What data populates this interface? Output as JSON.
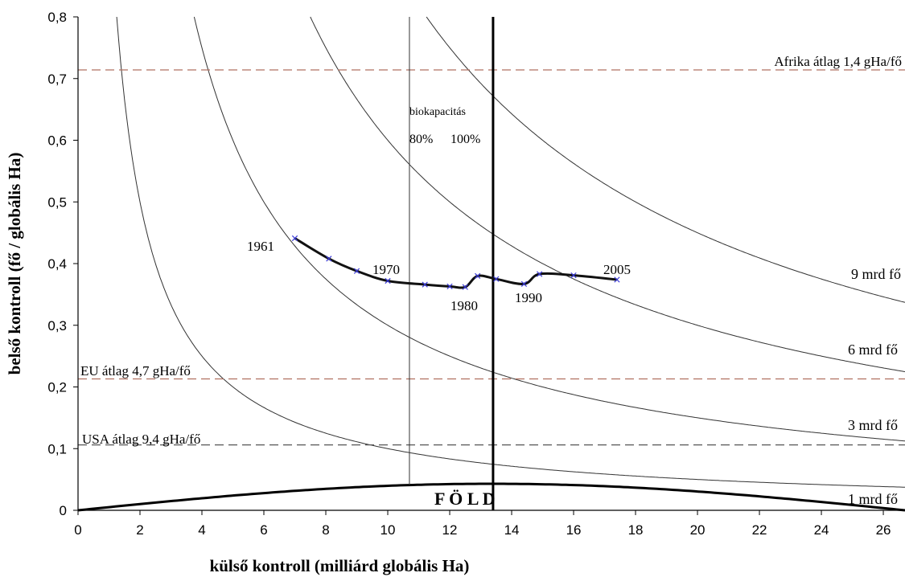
{
  "chart_data": {
    "type": "line",
    "xlabel": "külső kontroll  (milliárd globális Ha)",
    "ylabel": "belső kontroll  (fő / globális Ha)",
    "xlim": [
      0,
      26.7
    ],
    "ylim": [
      0,
      0.8
    ],
    "x_ticks": [
      "0",
      "2",
      "4",
      "6",
      "8",
      "10",
      "12",
      "14",
      "16",
      "18",
      "20",
      "22",
      "24",
      "26"
    ],
    "y_ticks": [
      "0",
      "0,1",
      "0,2",
      "0,3",
      "0,4",
      "0,5",
      "0,6",
      "0,7",
      "0,8"
    ],
    "grid": false,
    "series": [
      {
        "values": [
          {
            "x": 7.0,
            "y": 0.441
          },
          {
            "x": 8.1,
            "y": 0.408
          },
          {
            "x": 9.0,
            "y": 0.388
          },
          {
            "x": 10.0,
            "y": 0.372
          },
          {
            "x": 11.2,
            "y": 0.366
          },
          {
            "x": 12.0,
            "y": 0.363
          },
          {
            "x": 12.5,
            "y": 0.362
          },
          {
            "x": 12.9,
            "y": 0.38
          },
          {
            "x": 13.5,
            "y": 0.375
          },
          {
            "x": 14.4,
            "y": 0.367
          },
          {
            "x": 14.9,
            "y": 0.383
          },
          {
            "x": 16.0,
            "y": 0.381
          },
          {
            "x": 17.4,
            "y": 0.374
          }
        ]
      }
    ],
    "series_labels": [
      {
        "text": "1961",
        "x": 7.0,
        "y": 0.441
      },
      {
        "text": "1970",
        "x": 10.0,
        "y": 0.372
      },
      {
        "text": "1980",
        "x": 12.5,
        "y": 0.362
      },
      {
        "text": "1990",
        "x": 14.4,
        "y": 0.367
      },
      {
        "text": "2005",
        "x": 17.4,
        "y": 0.374
      }
    ],
    "hyperbolas": [
      {
        "label": "1 mrd fő",
        "k": 1
      },
      {
        "label": "3 mrd fő",
        "k": 3
      },
      {
        "label": "6 mrd fő",
        "k": 6
      },
      {
        "label": "9 mrd fő",
        "k": 9
      }
    ],
    "reference_lines": [
      {
        "label": "Afrika átlag 1,4 gHa/fő",
        "y": 0.714,
        "color": "#b07060"
      },
      {
        "label": "EU átlag 4,7 gHa/fő",
        "y": 0.213,
        "color": "#b07060"
      },
      {
        "label": "USA átlag 9,4 gHa/fő",
        "y": 0.106,
        "color": "#555555"
      }
    ],
    "biocapacity": {
      "label": "biokapacitás",
      "lines": [
        {
          "label": "80%",
          "x": 10.7
        },
        {
          "label": "100%",
          "x": 13.4
        }
      ]
    },
    "earth": {
      "label": "F Ö L D",
      "peak_y": 0.043
    }
  }
}
